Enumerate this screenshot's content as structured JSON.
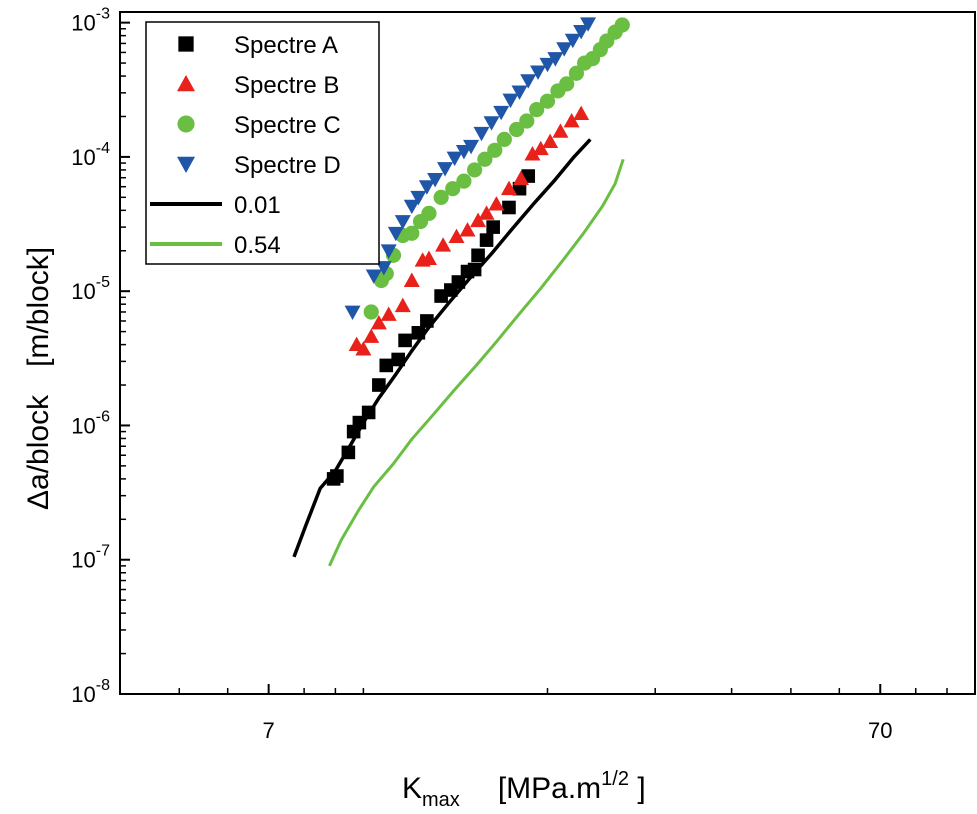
{
  "chart_data": {
    "type": "scatter",
    "x_scale": "log",
    "y_scale": "log",
    "xlim": [
      4,
      100
    ],
    "ylim": [
      1e-08,
      0.0012
    ],
    "xlabel": {
      "main": "K",
      "sub": "max",
      "units": "[MPa.m",
      "sup": "1/2",
      "close": " ]"
    },
    "ylabel": {
      "main": "Δa/block",
      "units": "[m/block]"
    },
    "x_ticks": [
      {
        "value": 7,
        "label": "7"
      },
      {
        "value": 70,
        "label": "70"
      }
    ],
    "y_ticks": [
      {
        "value": 1e-08,
        "base": "10",
        "exp": "-8"
      },
      {
        "value": 1e-07,
        "base": "10",
        "exp": "-7"
      },
      {
        "value": 1e-06,
        "base": "10",
        "exp": "-6"
      },
      {
        "value": 1e-05,
        "base": "10",
        "exp": "-5"
      },
      {
        "value": 0.0001,
        "base": "10",
        "exp": "-4"
      },
      {
        "value": 0.001,
        "base": "10",
        "exp": "-3"
      }
    ],
    "legend_position": "top-left",
    "series": [
      {
        "name": "Spectre A",
        "kind": "marker",
        "marker": "square",
        "color": "#000000",
        "points": [
          [
            8.94,
            4e-07
          ],
          [
            9.05,
            4.2e-07
          ],
          [
            9.45,
            6.3e-07
          ],
          [
            9.64,
            9e-07
          ],
          [
            9.85,
            1.05e-06
          ],
          [
            10.2,
            1.25e-06
          ],
          [
            10.6,
            2e-06
          ],
          [
            10.9,
            2.8e-06
          ],
          [
            11.4,
            3.1e-06
          ],
          [
            11.7,
            4.3e-06
          ],
          [
            12.3,
            4.9e-06
          ],
          [
            12.7,
            6e-06
          ],
          [
            13.4,
            9.2e-06
          ],
          [
            13.9,
            1.02e-05
          ],
          [
            14.3,
            1.17e-05
          ],
          [
            14.8,
            1.4e-05
          ],
          [
            15.2,
            1.45e-05
          ],
          [
            15.4,
            1.85e-05
          ],
          [
            15.9,
            2.4e-05
          ],
          [
            16.3,
            3e-05
          ],
          [
            17.3,
            4.2e-05
          ],
          [
            18.0,
            5.8e-05
          ],
          [
            18.6,
            7.2e-05
          ]
        ]
      },
      {
        "name": "Spectre B",
        "kind": "marker",
        "marker": "triangle-up",
        "color": "#e8221b",
        "points": [
          [
            9.75,
            4e-06
          ],
          [
            10.0,
            3.7e-06
          ],
          [
            10.3,
            4.6e-06
          ],
          [
            10.6,
            5.8e-06
          ],
          [
            11.0,
            6.7e-06
          ],
          [
            11.6,
            7.8e-06
          ],
          [
            12.0,
            1.2e-05
          ],
          [
            12.5,
            1.7e-05
          ],
          [
            12.8,
            1.75e-05
          ],
          [
            13.5,
            2.2e-05
          ],
          [
            14.2,
            2.55e-05
          ],
          [
            14.8,
            2.85e-05
          ],
          [
            15.4,
            3.35e-05
          ],
          [
            15.9,
            3.8e-05
          ],
          [
            16.5,
            4.45e-05
          ],
          [
            17.3,
            5.8e-05
          ],
          [
            18.1,
            6.9e-05
          ],
          [
            18.9,
            0.000105
          ],
          [
            19.5,
            0.000115
          ],
          [
            20.2,
            0.00013
          ],
          [
            21.0,
            0.000155
          ],
          [
            21.9,
            0.000185
          ],
          [
            22.7,
            0.00021
          ]
        ]
      },
      {
        "name": "Spectre C",
        "kind": "marker",
        "marker": "circle",
        "color": "#6abf43",
        "points": [
          [
            10.3,
            7e-06
          ],
          [
            10.7,
            1.2e-05
          ],
          [
            10.9,
            1.35e-05
          ],
          [
            11.2,
            1.85e-05
          ],
          [
            11.6,
            2.6e-05
          ],
          [
            12.0,
            2.7e-05
          ],
          [
            12.4,
            3.3e-05
          ],
          [
            12.8,
            3.8e-05
          ],
          [
            13.4,
            5e-05
          ],
          [
            14.0,
            5.8e-05
          ],
          [
            14.6,
            6.6e-05
          ],
          [
            15.2,
            8e-05
          ],
          [
            15.8,
            9.6e-05
          ],
          [
            16.4,
            0.000112
          ],
          [
            17.0,
            0.000135
          ],
          [
            17.8,
            0.00016
          ],
          [
            18.5,
            0.000185
          ],
          [
            19.2,
            0.000225
          ],
          [
            20.0,
            0.00026
          ],
          [
            20.8,
            0.00031
          ],
          [
            21.5,
            0.00035
          ],
          [
            22.3,
            0.00042
          ],
          [
            23.0,
            0.0005
          ],
          [
            23.7,
            0.00054
          ],
          [
            24.4,
            0.00063
          ],
          [
            25.0,
            0.00073
          ],
          [
            25.8,
            0.00085
          ],
          [
            26.5,
            0.00096
          ]
        ]
      },
      {
        "name": "Spectre D",
        "kind": "marker",
        "marker": "triangle-down",
        "color": "#1f56a8",
        "points": [
          [
            9.6,
            7e-06
          ],
          [
            10.4,
            1.3e-05
          ],
          [
            10.8,
            1.5e-05
          ],
          [
            11.0,
            2e-05
          ],
          [
            11.3,
            2.7e-05
          ],
          [
            11.6,
            3.3e-05
          ],
          [
            12.0,
            4.3e-05
          ],
          [
            12.3,
            5e-05
          ],
          [
            12.7,
            6e-05
          ],
          [
            13.1,
            6.8e-05
          ],
          [
            13.6,
            8.2e-05
          ],
          [
            14.1,
            9.8e-05
          ],
          [
            14.6,
            0.00011
          ],
          [
            15.0,
            0.00012
          ],
          [
            15.6,
            0.00015
          ],
          [
            16.2,
            0.00018
          ],
          [
            16.8,
            0.000215
          ],
          [
            17.4,
            0.000265
          ],
          [
            18.0,
            0.000305
          ],
          [
            18.6,
            0.00037
          ],
          [
            19.3,
            0.00043
          ],
          [
            20.0,
            0.00049
          ],
          [
            20.6,
            0.00054
          ],
          [
            21.3,
            0.00064
          ],
          [
            22.0,
            0.00074
          ],
          [
            22.7,
            0.00086
          ],
          [
            23.3,
            0.00098
          ]
        ]
      },
      {
        "name": "0.01",
        "kind": "line",
        "color": "#000000",
        "points": [
          [
            7.7,
            1.05e-07
          ],
          [
            8.05,
            1.8e-07
          ],
          [
            8.5,
            3.4e-07
          ],
          [
            9.0,
            4.6e-07
          ],
          [
            9.5,
            7e-07
          ],
          [
            10.0,
            1.05e-06
          ],
          [
            10.6,
            1.6e-06
          ],
          [
            11.3,
            2.4e-06
          ],
          [
            12.0,
            3.6e-06
          ],
          [
            12.8,
            5.4e-06
          ],
          [
            13.8,
            8.2e-06
          ],
          [
            15.0,
            1.28e-05
          ],
          [
            16.2,
            1.9e-05
          ],
          [
            17.5,
            2.9e-05
          ],
          [
            19.0,
            4.5e-05
          ],
          [
            20.6,
            6.8e-05
          ],
          [
            22.1,
            0.0001
          ],
          [
            23.5,
            0.000135
          ]
        ]
      },
      {
        "name": "0.54",
        "kind": "line",
        "color": "#6abf43",
        "points": [
          [
            8.8,
            9e-08
          ],
          [
            9.2,
            1.4e-07
          ],
          [
            9.8,
            2.3e-07
          ],
          [
            10.4,
            3.5e-07
          ],
          [
            11.2,
            5.2e-07
          ],
          [
            12.0,
            7.9e-07
          ],
          [
            13.0,
            1.2e-06
          ],
          [
            14.1,
            1.85e-06
          ],
          [
            15.3,
            2.8e-06
          ],
          [
            16.5,
            4.2e-06
          ],
          [
            17.9,
            6.6e-06
          ],
          [
            19.5,
            1.05e-05
          ],
          [
            21.2,
            1.7e-05
          ],
          [
            22.9,
            2.7e-05
          ],
          [
            24.6,
            4.3e-05
          ],
          [
            25.8,
            6.3e-05
          ],
          [
            26.6,
            9.6e-05
          ]
        ]
      }
    ]
  }
}
